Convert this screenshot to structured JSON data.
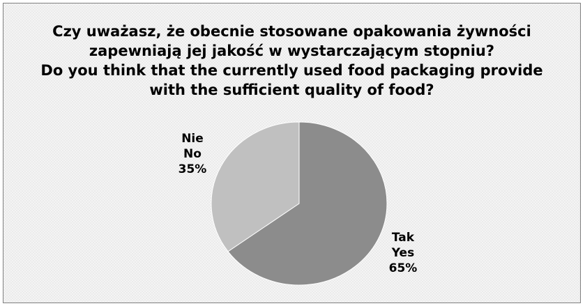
{
  "chart_data": {
    "type": "pie",
    "title_lines": [
      "Czy uważasz, że obecnie stosowane opakowania żywności",
      "zapewniają jej jakość w wystarczającym stopniu?",
      "Do you think that the currently used food packaging provide",
      "with the sufficient quality of food?"
    ],
    "slices": [
      {
        "label_pl": "Tak",
        "label_en": "Yes",
        "value": 65,
        "value_label": "65%",
        "color": "#8c8c8c"
      },
      {
        "label_pl": "Nie",
        "label_en": "No",
        "value": 35,
        "value_label": "35%",
        "color": "#c0c0c0"
      }
    ]
  }
}
